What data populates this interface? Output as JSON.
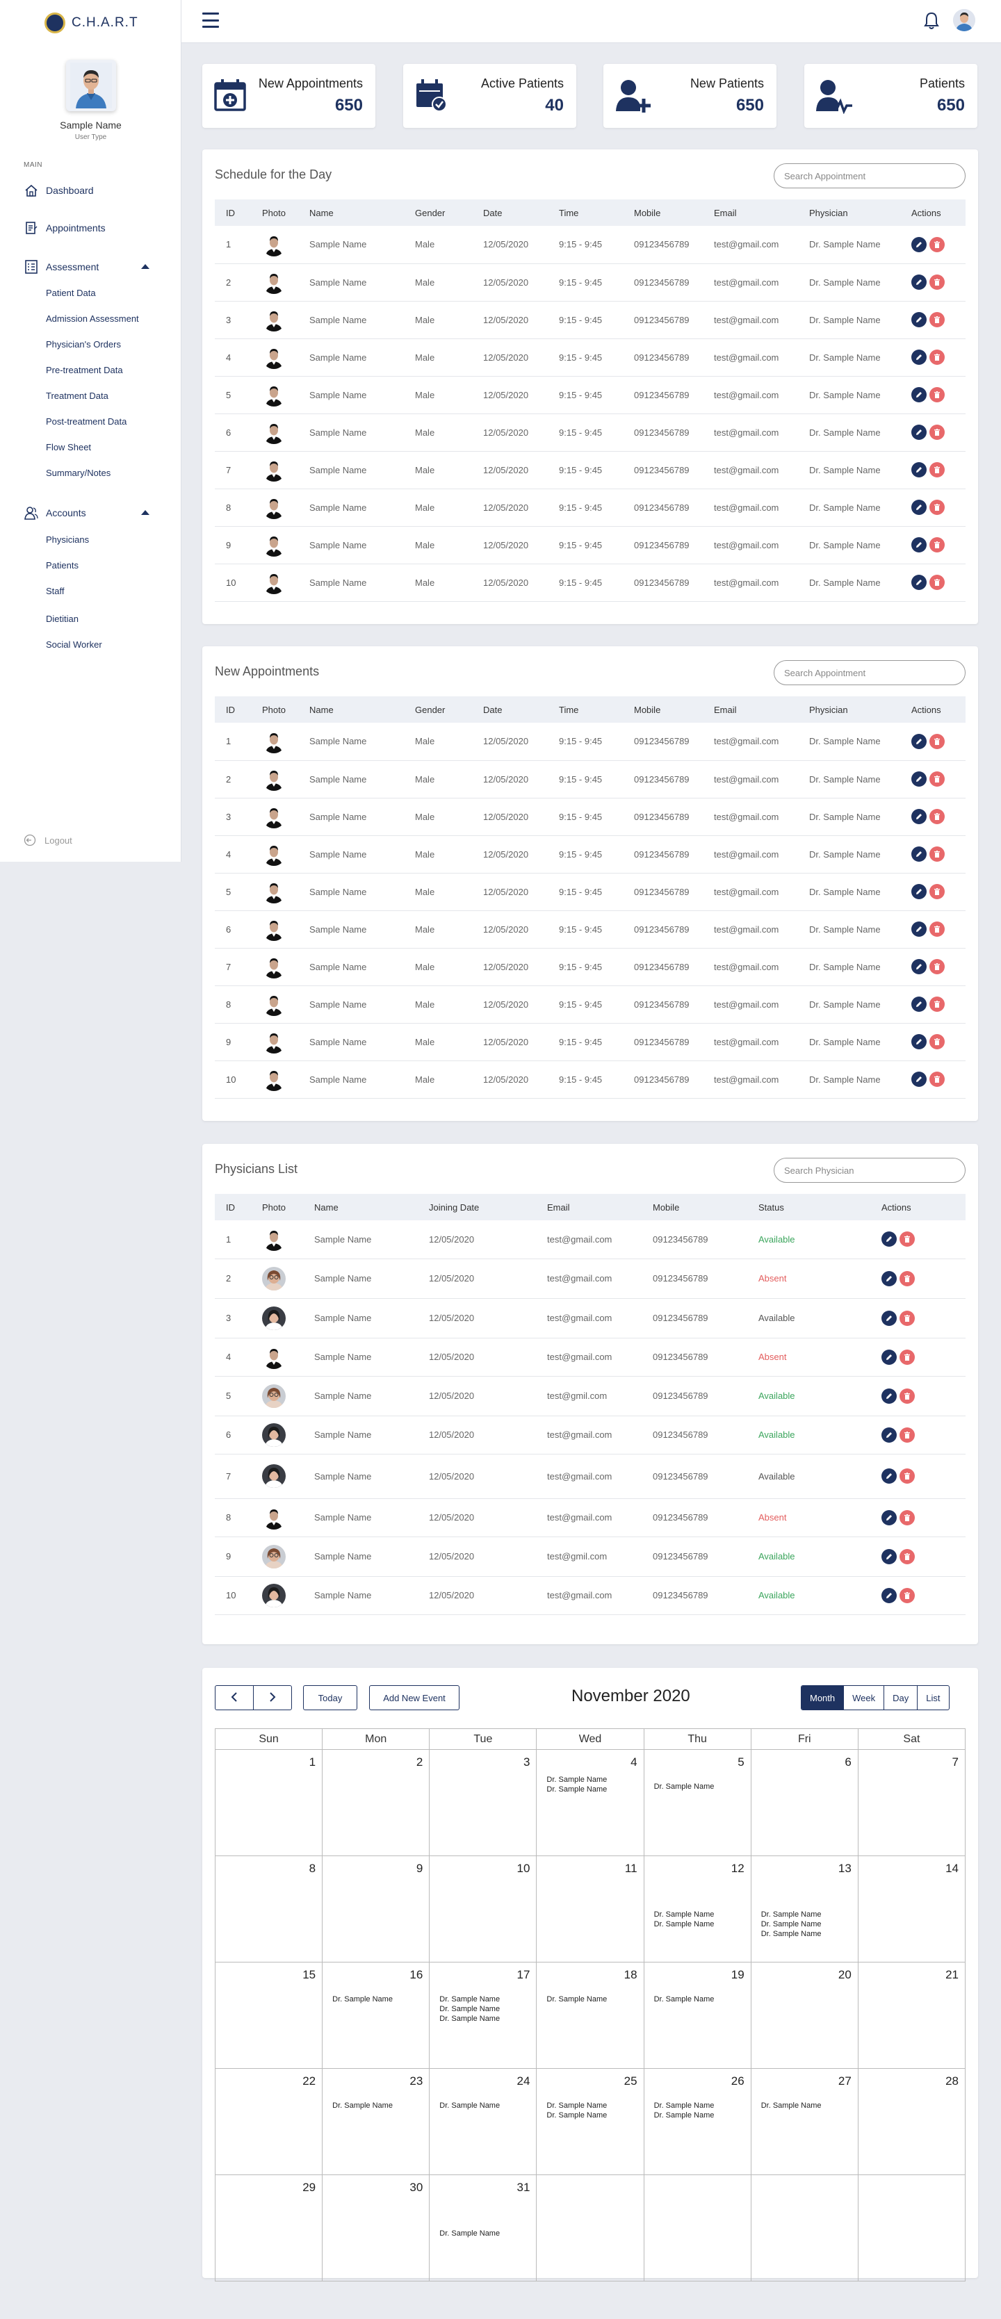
{
  "app": {
    "title": "C.H.A.R.T"
  },
  "profile": {
    "name": "Sample Name",
    "role": "User Type"
  },
  "nav": {
    "section": "MAIN",
    "dashboard": "Dashboard",
    "appointments": "Appointments",
    "assessment": "Assessment",
    "assessment_items": [
      "Patient Data",
      "Admission Assessment",
      "Physician's Orders",
      "Pre-treatment Data",
      "Treatment Data",
      "Post-treatment Data",
      "Flow Sheet",
      "Summary/Notes"
    ],
    "accounts": "Accounts",
    "account_items": [
      "Physicians",
      "Patients",
      "Staff",
      "Dietitian",
      "Social Worker"
    ],
    "logout": "Logout"
  },
  "stats": [
    {
      "label": "New Appointments",
      "value": "650",
      "icon": "calendar-plus-icon"
    },
    {
      "label": "Active Patients",
      "value": "40",
      "icon": "calendar-check-icon"
    },
    {
      "label": "New Patients",
      "value": "650",
      "icon": "user-plus-icon"
    },
    {
      "label": "Patients",
      "value": "650",
      "icon": "user-heartbeat-icon"
    }
  ],
  "schedule": {
    "title": "Schedule for the Day",
    "search_placeholder": "Search Appointment",
    "columns": [
      "ID",
      "Photo",
      "Name",
      "Gender",
      "Date",
      "Time",
      "Mobile",
      "Email",
      "Physician",
      "Actions"
    ],
    "rows": [
      {
        "id": "1",
        "name": "Sample Name",
        "gender": "Male",
        "date": "12/05/2020",
        "time": "9:15 - 9:45",
        "mobile": "09123456789",
        "email": "test@gmail.com",
        "physician": "Dr. Sample Name"
      },
      {
        "id": "2",
        "name": "Sample Name",
        "gender": "Male",
        "date": "12/05/2020",
        "time": "9:15 - 9:45",
        "mobile": "09123456789",
        "email": "test@gmail.com",
        "physician": "Dr. Sample Name"
      },
      {
        "id": "3",
        "name": "Sample Name",
        "gender": "Male",
        "date": "12/05/2020",
        "time": "9:15 - 9:45",
        "mobile": "09123456789",
        "email": "test@gmail.com",
        "physician": "Dr. Sample Name"
      },
      {
        "id": "4",
        "name": "Sample Name",
        "gender": "Male",
        "date": "12/05/2020",
        "time": "9:15 - 9:45",
        "mobile": "09123456789",
        "email": "test@gmail.com",
        "physician": "Dr. Sample Name"
      },
      {
        "id": "5",
        "name": "Sample Name",
        "gender": "Male",
        "date": "12/05/2020",
        "time": "9:15 - 9:45",
        "mobile": "09123456789",
        "email": "test@gmail.com",
        "physician": "Dr. Sample Name"
      },
      {
        "id": "6",
        "name": "Sample Name",
        "gender": "Male",
        "date": "12/05/2020",
        "time": "9:15 - 9:45",
        "mobile": "09123456789",
        "email": "test@gmail.com",
        "physician": "Dr. Sample Name"
      },
      {
        "id": "7",
        "name": "Sample Name",
        "gender": "Male",
        "date": "12/05/2020",
        "time": "9:15 - 9:45",
        "mobile": "09123456789",
        "email": "test@gmail.com",
        "physician": "Dr. Sample Name"
      },
      {
        "id": "8",
        "name": "Sample Name",
        "gender": "Male",
        "date": "12/05/2020",
        "time": "9:15 - 9:45",
        "mobile": "09123456789",
        "email": "test@gmail.com",
        "physician": "Dr. Sample Name"
      },
      {
        "id": "9",
        "name": "Sample Name",
        "gender": "Male",
        "date": "12/05/2020",
        "time": "9:15 - 9:45",
        "mobile": "09123456789",
        "email": "test@gmail.com",
        "physician": "Dr. Sample Name"
      },
      {
        "id": "10",
        "name": "Sample Name",
        "gender": "Male",
        "date": "12/05/2020",
        "time": "9:15 - 9:45",
        "mobile": "09123456789",
        "email": "test@gmail.com",
        "physician": "Dr. Sample Name"
      }
    ]
  },
  "new_appointments": {
    "title": "New Appointments",
    "search_placeholder": "Search Appointment",
    "columns": [
      "ID",
      "Photo",
      "Name",
      "Gender",
      "Date",
      "Time",
      "Mobile",
      "Email",
      "Physician",
      "Actions"
    ],
    "rows": [
      {
        "id": "1",
        "name": "Sample Name",
        "gender": "Male",
        "date": "12/05/2020",
        "time": "9:15 - 9:45",
        "mobile": "09123456789",
        "email": "test@gmail.com",
        "physician": "Dr. Sample Name"
      },
      {
        "id": "2",
        "name": "Sample Name",
        "gender": "Male",
        "date": "12/05/2020",
        "time": "9:15 - 9:45",
        "mobile": "09123456789",
        "email": "test@gmail.com",
        "physician": "Dr. Sample Name"
      },
      {
        "id": "3",
        "name": "Sample Name",
        "gender": "Male",
        "date": "12/05/2020",
        "time": "9:15 - 9:45",
        "mobile": "09123456789",
        "email": "test@gmail.com",
        "physician": "Dr. Sample Name"
      },
      {
        "id": "4",
        "name": "Sample Name",
        "gender": "Male",
        "date": "12/05/2020",
        "time": "9:15 - 9:45",
        "mobile": "09123456789",
        "email": "test@gmail.com",
        "physician": "Dr. Sample Name"
      },
      {
        "id": "5",
        "name": "Sample Name",
        "gender": "Male",
        "date": "12/05/2020",
        "time": "9:15 - 9:45",
        "mobile": "09123456789",
        "email": "test@gmail.com",
        "physician": "Dr. Sample Name"
      },
      {
        "id": "6",
        "name": "Sample Name",
        "gender": "Male",
        "date": "12/05/2020",
        "time": "9:15 - 9:45",
        "mobile": "09123456789",
        "email": "test@gmail.com",
        "physician": "Dr. Sample Name"
      },
      {
        "id": "7",
        "name": "Sample Name",
        "gender": "Male",
        "date": "12/05/2020",
        "time": "9:15 - 9:45",
        "mobile": "09123456789",
        "email": "test@gmail.com",
        "physician": "Dr. Sample Name"
      },
      {
        "id": "8",
        "name": "Sample Name",
        "gender": "Male",
        "date": "12/05/2020",
        "time": "9:15 - 9:45",
        "mobile": "09123456789",
        "email": "test@gmail.com",
        "physician": "Dr. Sample Name"
      },
      {
        "id": "9",
        "name": "Sample Name",
        "gender": "Male",
        "date": "12/05/2020",
        "time": "9:15 - 9:45",
        "mobile": "09123456789",
        "email": "test@gmail.com",
        "physician": "Dr. Sample Name"
      },
      {
        "id": "10",
        "name": "Sample Name",
        "gender": "Male",
        "date": "12/05/2020",
        "time": "9:15 - 9:45",
        "mobile": "09123456789",
        "email": "test@gmail.com",
        "physician": "Dr. Sample Name"
      }
    ]
  },
  "physicians": {
    "title": "Physicians List",
    "search_placeholder": "Search Physician",
    "columns": [
      "ID",
      "Photo",
      "Name",
      "Joining Date",
      "Email",
      "Mobile",
      "Status",
      "Actions"
    ],
    "rows": [
      {
        "id": "1",
        "photo": "male",
        "name": "Sample Name",
        "joined": "12/05/2020",
        "email": "test@gmail.com",
        "mobile": "09123456789",
        "status": "Available",
        "status_color": "#3ba55c"
      },
      {
        "id": "2",
        "photo": "female-glasses",
        "name": "Sample Name",
        "joined": "12/05/2020",
        "email": "test@gmail.com",
        "mobile": "09123456789",
        "status": "Absent",
        "status_color": "#e35d5d"
      },
      {
        "id": "3",
        "photo": "female-dark",
        "name": "Sample Name",
        "joined": "12/05/2020",
        "email": "test@gmail.com",
        "mobile": "09123456789",
        "status": "Available",
        "status_color": "#555555"
      },
      {
        "id": "4",
        "photo": "male",
        "name": "Sample Name",
        "joined": "12/05/2020",
        "email": "test@gmail.com",
        "mobile": "09123456789",
        "status": "Absent",
        "status_color": "#e35d5d"
      },
      {
        "id": "5",
        "photo": "female-glasses",
        "name": "Sample Name",
        "joined": "12/05/2020",
        "email": "test@gmil.com",
        "mobile": "09123456789",
        "status": "Available",
        "status_color": "#3ba55c"
      },
      {
        "id": "6",
        "photo": "female-dark",
        "name": "Sample Name",
        "joined": "12/05/2020",
        "email": "test@gmail.com",
        "mobile": "09123456789",
        "status": "Available",
        "status_color": "#3ba55c"
      },
      {
        "id": "7",
        "photo": "female-dark",
        "name": "Sample Name",
        "joined": "12/05/2020",
        "email": "test@gmail.com",
        "mobile": "09123456789",
        "status": "Available",
        "status_color": "#555555"
      },
      {
        "id": "8",
        "photo": "male",
        "name": "Sample Name",
        "joined": "12/05/2020",
        "email": "test@gmail.com",
        "mobile": "09123456789",
        "status": "Absent",
        "status_color": "#e35d5d"
      },
      {
        "id": "9",
        "photo": "female-glasses",
        "name": "Sample Name",
        "joined": "12/05/2020",
        "email": "test@gmil.com",
        "mobile": "09123456789",
        "status": "Available",
        "status_color": "#3ba55c"
      },
      {
        "id": "10",
        "photo": "female-dark",
        "name": "Sample Name",
        "joined": "12/05/2020",
        "email": "test@gmail.com",
        "mobile": "09123456789",
        "status": "Available",
        "status_color": "#3ba55c"
      }
    ]
  },
  "calendar": {
    "title": "November 2020",
    "today_label": "Today",
    "add_event_label": "Add New Event",
    "views": [
      "Month",
      "Week",
      "Day",
      "List"
    ],
    "active_view": "Month",
    "weekdays": [
      "Sun",
      "Mon",
      "Tue",
      "Wed",
      "Thu",
      "Fri",
      "Sat"
    ],
    "weeks": [
      [
        {
          "day": "1",
          "events": []
        },
        {
          "day": "2",
          "events": []
        },
        {
          "day": "3",
          "events": []
        },
        {
          "day": "4",
          "events": [
            "Dr. Sample Name",
            "Dr. Sample Name"
          ]
        },
        {
          "day": "5",
          "events": [
            "Dr. Sample Name"
          ]
        },
        {
          "day": "6",
          "events": []
        },
        {
          "day": "7",
          "events": []
        }
      ],
      [
        {
          "day": "8",
          "events": []
        },
        {
          "day": "9",
          "events": []
        },
        {
          "day": "10",
          "events": []
        },
        {
          "day": "11",
          "events": []
        },
        {
          "day": "12",
          "events": [
            "Dr. Sample Name",
            "Dr. Sample Name"
          ]
        },
        {
          "day": "13",
          "events": [
            "Dr. Sample Name",
            "Dr. Sample Name",
            "Dr. Sample Name"
          ]
        },
        {
          "day": "14",
          "events": []
        }
      ],
      [
        {
          "day": "15",
          "events": []
        },
        {
          "day": "16",
          "events": [
            "Dr. Sample Name"
          ]
        },
        {
          "day": "17",
          "events": [
            "Dr. Sample Name",
            "Dr. Sample Name",
            "Dr. Sample Name"
          ]
        },
        {
          "day": "18",
          "events": [
            "Dr. Sample Name"
          ]
        },
        {
          "day": "19",
          "events": [
            "Dr. Sample Name"
          ]
        },
        {
          "day": "20",
          "events": []
        },
        {
          "day": "21",
          "events": []
        }
      ],
      [
        {
          "day": "22",
          "events": []
        },
        {
          "day": "23",
          "events": [
            "Dr. Sample Name"
          ]
        },
        {
          "day": "24",
          "events": [
            "Dr. Sample Name"
          ]
        },
        {
          "day": "25",
          "events": [
            "Dr. Sample Name",
            "Dr. Sample Name"
          ]
        },
        {
          "day": "26",
          "events": [
            "Dr. Sample Name",
            "Dr. Sample Name"
          ]
        },
        {
          "day": "27",
          "events": [
            "Dr. Sample Name"
          ]
        },
        {
          "day": "28",
          "events": []
        }
      ],
      [
        {
          "day": "29",
          "events": []
        },
        {
          "day": "30",
          "events": []
        },
        {
          "day": "31",
          "events": [
            "Dr. Sample Name"
          ]
        },
        {
          "day": "",
          "events": []
        },
        {
          "day": "",
          "events": []
        },
        {
          "day": "",
          "events": []
        },
        {
          "day": "",
          "events": []
        }
      ]
    ]
  },
  "colors": {
    "primary": "#1e3260",
    "danger": "#e8686a",
    "available": "#3ba55c",
    "absent": "#e35d5d",
    "background": "#e9ebf0"
  }
}
